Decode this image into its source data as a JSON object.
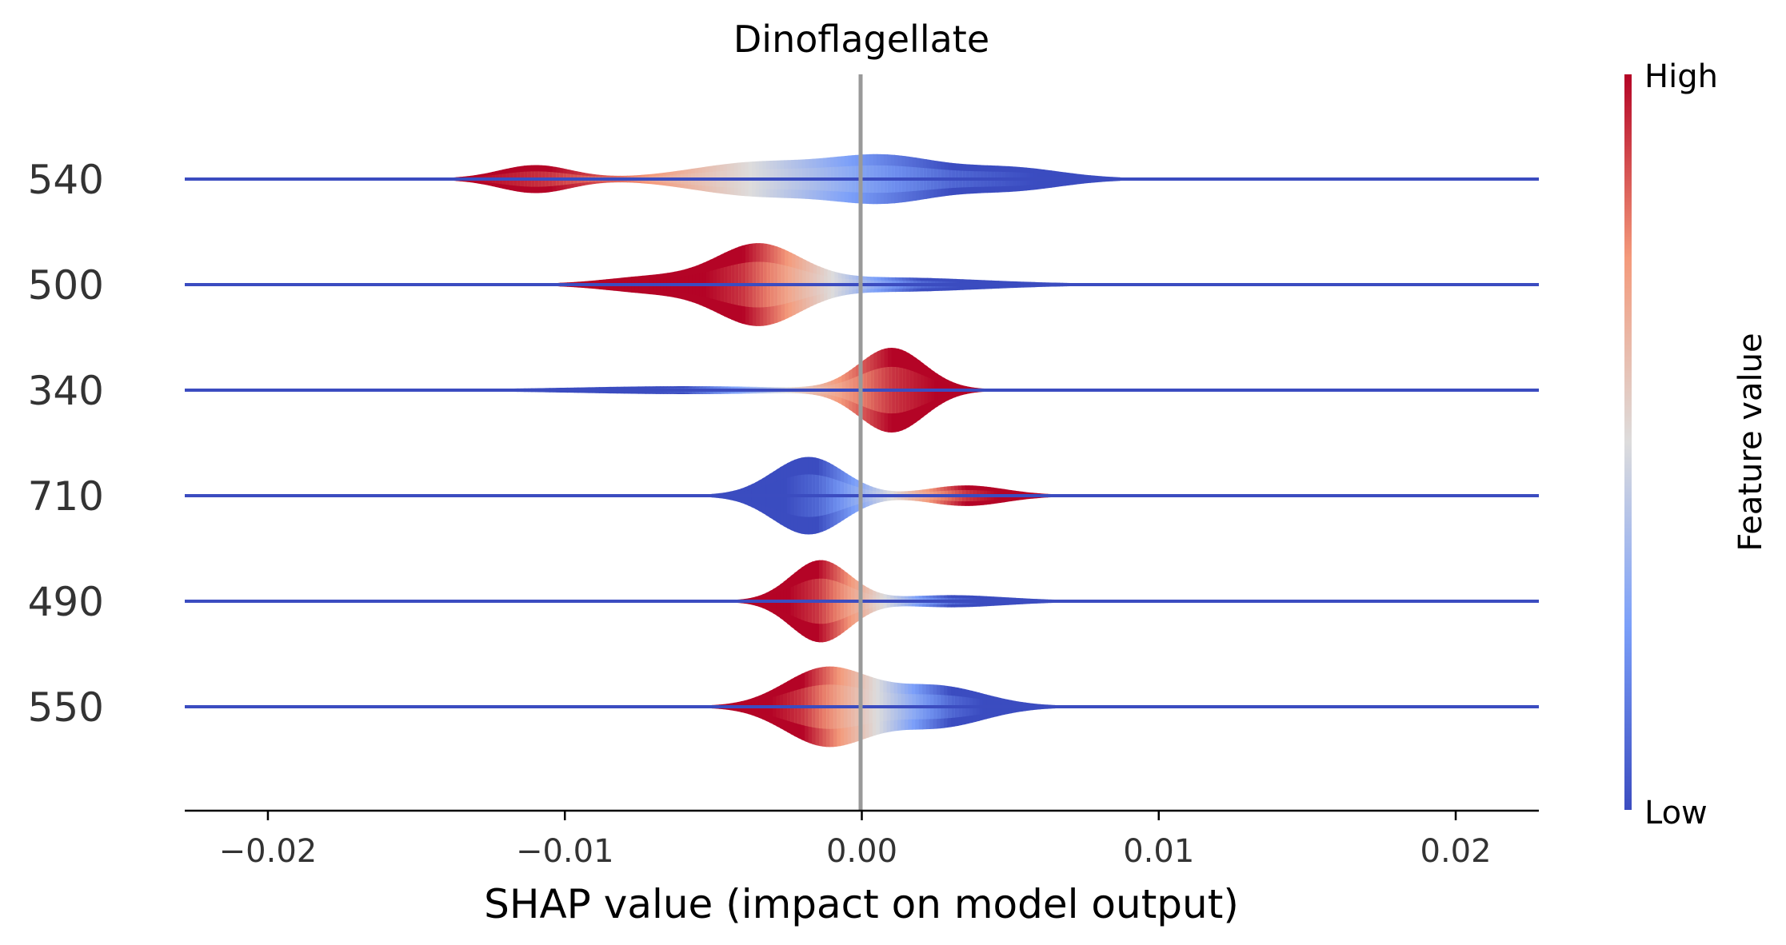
{
  "chart_data": {
    "type": "violin",
    "title": "Dinoflagellate",
    "xlabel": "SHAP value (impact on model output)",
    "xlim": [
      -0.0228,
      0.0228
    ],
    "xticks": [
      -0.02,
      -0.01,
      0.0,
      0.01,
      0.02
    ],
    "xtick_labels": [
      "−0.02",
      "−0.01",
      "0.00",
      "0.01",
      "0.02"
    ],
    "features": [
      "540",
      "500",
      "340",
      "710",
      "490",
      "550"
    ],
    "violins": [
      {
        "feature": "540",
        "extent": [
          -0.0145,
          0.0095
        ],
        "high_value_center": -0.0105,
        "low_value_center": 0.003,
        "bumps": [
          {
            "x": -0.011,
            "w": 0.0012,
            "h": 0.25
          },
          {
            "x": -0.0035,
            "w": 0.0022,
            "h": 0.3
          },
          {
            "x": 0.0008,
            "w": 0.0018,
            "h": 0.4
          },
          {
            "x": 0.005,
            "w": 0.0017,
            "h": 0.2
          }
        ]
      },
      {
        "feature": "500",
        "extent": [
          -0.011,
          0.0125
        ],
        "high_value_center": -0.004,
        "low_value_center": 0.002,
        "bumps": [
          {
            "x": -0.0035,
            "w": 0.0014,
            "h": 0.72
          },
          {
            "x": -0.007,
            "w": 0.0016,
            "h": 0.14
          },
          {
            "x": 0.001,
            "w": 0.003,
            "h": 0.12
          }
        ]
      },
      {
        "feature": "340",
        "extent": [
          -0.014,
          0.005
        ],
        "high_value_center": 0.001,
        "low_value_center": -0.006,
        "bumps": [
          {
            "x": 0.001,
            "w": 0.0011,
            "h": 0.78
          },
          {
            "x": -0.006,
            "w": 0.0035,
            "h": 0.06
          }
        ]
      },
      {
        "feature": "710",
        "extent": [
          -0.006,
          0.0072
        ],
        "high_value_center": 0.0035,
        "low_value_center": -0.0015,
        "bumps": [
          {
            "x": -0.0018,
            "w": 0.0012,
            "h": 0.72
          },
          {
            "x": 0.0035,
            "w": 0.0013,
            "h": 0.18
          }
        ]
      },
      {
        "feature": "490",
        "extent": [
          -0.006,
          0.008
        ],
        "high_value_center": -0.0015,
        "low_value_center": 0.003,
        "bumps": [
          {
            "x": -0.0014,
            "w": 0.001,
            "h": 0.76
          },
          {
            "x": 0.003,
            "w": 0.0018,
            "h": 0.1
          }
        ]
      },
      {
        "feature": "550",
        "extent": [
          -0.006,
          0.0075
        ],
        "high_value_center": -0.002,
        "low_value_center": 0.003,
        "bumps": [
          {
            "x": -0.0012,
            "w": 0.0014,
            "h": 0.72
          },
          {
            "x": 0.0025,
            "w": 0.0016,
            "h": 0.38
          }
        ]
      }
    ],
    "colorbar": {
      "title": "Feature value",
      "high_label": "High",
      "low_label": "Low",
      "colormap": "coolwarm"
    }
  },
  "colors": {
    "line": "#3b4cc0",
    "center": "#999999",
    "high": "#b40426",
    "low": "#3b4cc0"
  }
}
